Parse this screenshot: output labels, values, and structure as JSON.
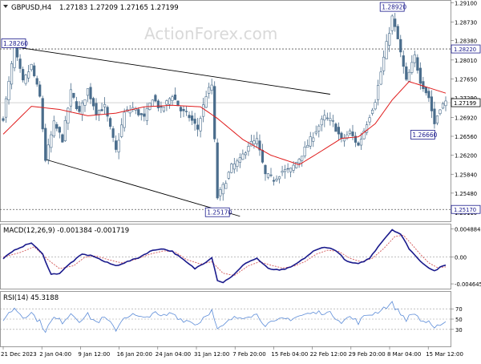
{
  "header": {
    "symbol": "GBPUSD,H4",
    "ohlc": "1.27183 1.27209 1.27165 1.27199",
    "watermark": "ActionForex.com"
  },
  "colors": {
    "candle": "#4a6d8c",
    "ma": "#e01c1c",
    "macd": "#1a1a8c",
    "signal": "#d45a5a",
    "rsi": "#5c8cd8",
    "trendline": "#000000",
    "level": "#555555",
    "frame": "#9a9a9a"
  },
  "chart_data": [
    {
      "type": "candlestick",
      "panel": "price",
      "title": "GBPUSD,H4",
      "ylim": [
        1.2496,
        1.2912
      ],
      "y_ticks": [
        "1.29100",
        "1.28730",
        "1.28380",
        "1.28010",
        "1.27650",
        "1.27290",
        "1.26920",
        "1.26560",
        "1.26200",
        "1.25840",
        "1.25480",
        "1.25110"
      ],
      "x_ticks": [
        "21 Dec 2023",
        "2 Jan 04:00",
        "9 Jan 12:00",
        "16 Jan 20:00",
        "24 Jan 04:00",
        "31 Jan 12:00",
        "7 Feb 20:00",
        "15 Feb 04:00",
        "22 Feb 12:00",
        "29 Feb 20:00",
        "8 Mar 04:00",
        "15 Mar 12:00"
      ],
      "current_price": 1.27199,
      "current_price_label": "1.27199",
      "levels": [
        {
          "value": 1.2822,
          "label": "1.28220"
        },
        {
          "value": 1.2517,
          "label": "1.25170"
        }
      ],
      "annotations": [
        {
          "label": "1.28260",
          "value": 1.2826,
          "bar": 4
        },
        {
          "label": "1.28920",
          "value": 1.2892,
          "bar": 138
        },
        {
          "label": "1.26660",
          "value": 1.2666,
          "bar": 152
        },
        {
          "label": "1.25170",
          "value": 1.2517,
          "bar": 76
        }
      ],
      "trendlines": [
        {
          "from": {
            "bar": 4,
            "value": 1.2826
          },
          "to": {
            "bar": 116,
            "value": 1.2736
          }
        },
        {
          "from": {
            "bar": 15,
            "value": 1.2612
          },
          "to": {
            "bar": 84,
            "value": 1.2504
          }
        }
      ],
      "close_anchors": [
        [
          0,
          1.2692
        ],
        [
          4,
          1.2823
        ],
        [
          7,
          1.2758
        ],
        [
          10,
          1.279
        ],
        [
          13,
          1.273
        ],
        [
          15,
          1.2612
        ],
        [
          18,
          1.268
        ],
        [
          21,
          1.265
        ],
        [
          24,
          1.274
        ],
        [
          27,
          1.27
        ],
        [
          30,
          1.2745
        ],
        [
          33,
          1.2702
        ],
        [
          36,
          1.2712
        ],
        [
          40,
          1.2628
        ],
        [
          43,
          1.27
        ],
        [
          46,
          1.271
        ],
        [
          50,
          1.269
        ],
        [
          53,
          1.273
        ],
        [
          56,
          1.2705
        ],
        [
          60,
          1.2735
        ],
        [
          63,
          1.2705
        ],
        [
          66,
          1.2693
        ],
        [
          69,
          1.267
        ],
        [
          72,
          1.2735
        ],
        [
          74,
          1.2753
        ],
        [
          76,
          1.254
        ],
        [
          78,
          1.256
        ],
        [
          81,
          1.2598
        ],
        [
          84,
          1.261
        ],
        [
          87,
          1.264
        ],
        [
          90,
          1.2648
        ],
        [
          93,
          1.2582
        ],
        [
          96,
          1.2574
        ],
        [
          99,
          1.259
        ],
        [
          102,
          1.2592
        ],
        [
          105,
          1.2614
        ],
        [
          108,
          1.264
        ],
        [
          111,
          1.2668
        ],
        [
          114,
          1.2692
        ],
        [
          117,
          1.2682
        ],
        [
          120,
          1.2648
        ],
        [
          123,
          1.2664
        ],
        [
          126,
          1.2638
        ],
        [
          129,
          1.2682
        ],
        [
          132,
          1.2725
        ],
        [
          135,
          1.2805
        ],
        [
          138,
          1.2882
        ],
        [
          140,
          1.284
        ],
        [
          143,
          1.276
        ],
        [
          146,
          1.2808
        ],
        [
          148,
          1.2762
        ],
        [
          151,
          1.273
        ],
        [
          153,
          1.268
        ],
        [
          155,
          1.2712
        ],
        [
          157,
          1.272
        ]
      ],
      "ma_anchors": [
        [
          0,
          1.266
        ],
        [
          10,
          1.2713
        ],
        [
          20,
          1.2707
        ],
        [
          30,
          1.2695
        ],
        [
          40,
          1.27
        ],
        [
          50,
          1.2712
        ],
        [
          60,
          1.2715
        ],
        [
          70,
          1.2712
        ],
        [
          76,
          1.269
        ],
        [
          85,
          1.265
        ],
        [
          95,
          1.262
        ],
        [
          105,
          1.2602
        ],
        [
          112,
          1.2625
        ],
        [
          120,
          1.2652
        ],
        [
          126,
          1.2655
        ],
        [
          132,
          1.268
        ],
        [
          138,
          1.2725
        ],
        [
          144,
          1.276
        ],
        [
          150,
          1.275
        ],
        [
          157,
          1.2738
        ]
      ],
      "bar_count": 158
    },
    {
      "type": "line",
      "panel": "macd",
      "label": "MACD(12,26,9) -0.001384 -0.001719",
      "ylim": [
        -0.0052,
        0.0054
      ],
      "y_ticks": [
        {
          "value": 0.00489,
          "label": "0.004884"
        },
        {
          "value": 0.0,
          "label": "0.00"
        },
        {
          "value": -0.00465,
          "label": "-0.004645"
        }
      ],
      "macd_anchors": [
        [
          0,
          -0.0002
        ],
        [
          5,
          0.0015
        ],
        [
          10,
          0.0025
        ],
        [
          14,
          0.0005
        ],
        [
          17,
          -0.003
        ],
        [
          20,
          -0.0028
        ],
        [
          24,
          -0.001
        ],
        [
          28,
          0.0005
        ],
        [
          32,
          0.0002
        ],
        [
          36,
          -0.0008
        ],
        [
          40,
          -0.0015
        ],
        [
          44,
          -0.0008
        ],
        [
          48,
          -0.0001
        ],
        [
          52,
          0.001
        ],
        [
          56,
          0.0015
        ],
        [
          60,
          0.001
        ],
        [
          64,
          -0.0005
        ],
        [
          68,
          -0.002
        ],
        [
          72,
          -0.0008
        ],
        [
          74,
          0.0
        ],
        [
          76,
          -0.004
        ],
        [
          78,
          -0.0044
        ],
        [
          82,
          -0.003
        ],
        [
          86,
          -0.001
        ],
        [
          90,
          -0.0002
        ],
        [
          94,
          -0.002
        ],
        [
          98,
          -0.0023
        ],
        [
          102,
          -0.0018
        ],
        [
          106,
          -0.0005
        ],
        [
          110,
          0.001
        ],
        [
          114,
          0.0018
        ],
        [
          118,
          0.0012
        ],
        [
          122,
          -0.0008
        ],
        [
          126,
          -0.0012
        ],
        [
          130,
          -0.0002
        ],
        [
          134,
          0.0025
        ],
        [
          138,
          0.0048
        ],
        [
          141,
          0.004
        ],
        [
          144,
          0.0015
        ],
        [
          147,
          -0.0002
        ],
        [
          150,
          -0.0015
        ],
        [
          153,
          -0.0024
        ],
        [
          155,
          -0.0018
        ],
        [
          157,
          -0.0014
        ]
      ],
      "signal_anchors": [
        [
          0,
          0.0
        ],
        [
          6,
          0.0008
        ],
        [
          11,
          0.0018
        ],
        [
          16,
          -0.0005
        ],
        [
          20,
          -0.002
        ],
        [
          25,
          -0.0015
        ],
        [
          29,
          0.0
        ],
        [
          33,
          0.0002
        ],
        [
          37,
          -0.0004
        ],
        [
          42,
          -0.001
        ],
        [
          47,
          -0.0004
        ],
        [
          52,
          0.0005
        ],
        [
          57,
          0.0011
        ],
        [
          61,
          0.0009
        ],
        [
          65,
          -0.0004
        ],
        [
          70,
          -0.0012
        ],
        [
          74,
          -0.0008
        ],
        [
          78,
          -0.0028
        ],
        [
          82,
          -0.0032
        ],
        [
          87,
          -0.0015
        ],
        [
          91,
          -0.0008
        ],
        [
          95,
          -0.0014
        ],
        [
          99,
          -0.0019
        ],
        [
          103,
          -0.0016
        ],
        [
          107,
          -0.0008
        ],
        [
          111,
          0.0005
        ],
        [
          115,
          0.0012
        ],
        [
          119,
          0.001
        ],
        [
          123,
          -0.0002
        ],
        [
          127,
          -0.0008
        ],
        [
          131,
          -0.0002
        ],
        [
          135,
          0.0015
        ],
        [
          139,
          0.0036
        ],
        [
          142,
          0.0038
        ],
        [
          145,
          0.0022
        ],
        [
          148,
          0.0005
        ],
        [
          151,
          -0.001
        ],
        [
          154,
          -0.0018
        ],
        [
          157,
          -0.0017
        ]
      ]
    },
    {
      "type": "line",
      "panel": "rsi",
      "label": "RSI(14) 45.3188",
      "ylim": [
        0,
        100
      ],
      "levels": [
        70,
        50,
        30
      ],
      "y_ticks": [
        "70",
        "50",
        "30"
      ],
      "rsi_anchors": [
        [
          0,
          50
        ],
        [
          4,
          72
        ],
        [
          7,
          55
        ],
        [
          10,
          62
        ],
        [
          13,
          44
        ],
        [
          15,
          28
        ],
        [
          18,
          52
        ],
        [
          21,
          45
        ],
        [
          24,
          62
        ],
        [
          27,
          48
        ],
        [
          30,
          58
        ],
        [
          33,
          44
        ],
        [
          36,
          52
        ],
        [
          40,
          30
        ],
        [
          43,
          55
        ],
        [
          46,
          58
        ],
        [
          50,
          50
        ],
        [
          53,
          63
        ],
        [
          56,
          54
        ],
        [
          60,
          62
        ],
        [
          63,
          50
        ],
        [
          66,
          46
        ],
        [
          69,
          40
        ],
        [
          72,
          60
        ],
        [
          74,
          66
        ],
        [
          76,
          28
        ],
        [
          78,
          36
        ],
        [
          81,
          50
        ],
        [
          84,
          54
        ],
        [
          87,
          58
        ],
        [
          90,
          58
        ],
        [
          93,
          40
        ],
        [
          96,
          42
        ],
        [
          99,
          50
        ],
        [
          102,
          51
        ],
        [
          105,
          56
        ],
        [
          108,
          60
        ],
        [
          111,
          62
        ],
        [
          114,
          64
        ],
        [
          117,
          58
        ],
        [
          120,
          46
        ],
        [
          123,
          54
        ],
        [
          126,
          44
        ],
        [
          129,
          58
        ],
        [
          132,
          62
        ],
        [
          135,
          72
        ],
        [
          138,
          80
        ],
        [
          140,
          66
        ],
        [
          143,
          50
        ],
        [
          146,
          62
        ],
        [
          148,
          48
        ],
        [
          151,
          42
        ],
        [
          153,
          28
        ],
        [
          155,
          42
        ],
        [
          157,
          45
        ]
      ]
    }
  ]
}
